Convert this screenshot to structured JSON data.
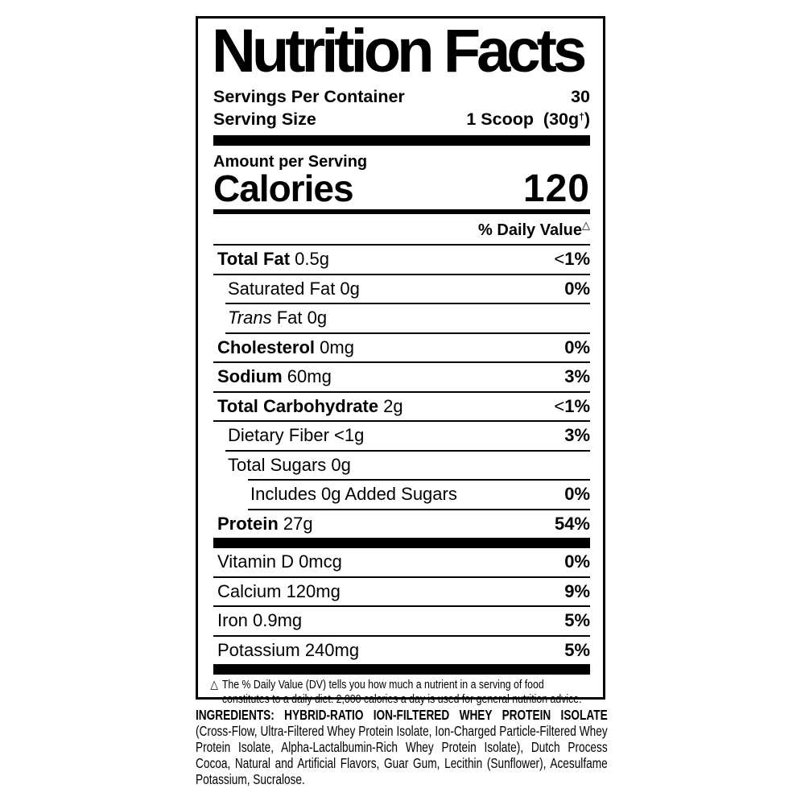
{
  "panel": {
    "title": "Nutrition Facts",
    "servings_per_container": {
      "label": "Servings Per Container",
      "value": "30"
    },
    "serving_size": {
      "label": "Serving Size",
      "value_main": "1 Scoop  (30g",
      "dagger": "†",
      "value_close": ")"
    },
    "amount_per_serving": "Amount per Serving",
    "calories": {
      "label": "Calories",
      "value": "120"
    },
    "daily_value_header": "% Daily Value",
    "daily_value_symbol": "△"
  },
  "rows": [
    {
      "type": "row",
      "id": "total-fat",
      "sep_indent": 0,
      "text_indent": 0,
      "label_parts": [
        {
          "t": "Total Fat",
          "b": true
        },
        {
          "t": " 0.5g"
        }
      ],
      "value_parts": [
        {
          "t": "<"
        },
        {
          "t": "1%",
          "b": true
        }
      ]
    },
    {
      "type": "row",
      "id": "saturated-fat",
      "sep_indent": 0,
      "text_indent": 1,
      "label_parts": [
        {
          "t": "Saturated Fat 0g"
        }
      ],
      "value_parts": [
        {
          "t": "0%",
          "b": true
        }
      ]
    },
    {
      "type": "row",
      "id": "trans-fat",
      "sep_indent": 1,
      "text_indent": 1,
      "label_parts": [
        {
          "t": "Trans",
          "i": true
        },
        {
          "t": " Fat 0g"
        }
      ],
      "value_parts": []
    },
    {
      "type": "row",
      "id": "cholesterol",
      "sep_indent": 1,
      "text_indent": 0,
      "label_parts": [
        {
          "t": "Cholesterol",
          "b": true
        },
        {
          "t": " 0mg"
        }
      ],
      "value_parts": [
        {
          "t": "0%",
          "b": true
        }
      ]
    },
    {
      "type": "row",
      "id": "sodium",
      "sep_indent": 0,
      "text_indent": 0,
      "label_parts": [
        {
          "t": "Sodium",
          "b": true
        },
        {
          "t": " 60mg"
        }
      ],
      "value_parts": [
        {
          "t": "3%",
          "b": true
        }
      ]
    },
    {
      "type": "row",
      "id": "total-carbohydrate",
      "sep_indent": 0,
      "text_indent": 0,
      "label_parts": [
        {
          "t": "Total Carbohydrate",
          "b": true
        },
        {
          "t": " 2g"
        }
      ],
      "value_parts": [
        {
          "t": "<"
        },
        {
          "t": "1%",
          "b": true
        }
      ]
    },
    {
      "type": "row",
      "id": "dietary-fiber",
      "sep_indent": 0,
      "text_indent": 1,
      "label_parts": [
        {
          "t": "Dietary Fiber <1g"
        }
      ],
      "value_parts": [
        {
          "t": "3%",
          "b": true
        }
      ]
    },
    {
      "type": "row",
      "id": "total-sugars",
      "sep_indent": 1,
      "text_indent": 1,
      "label_parts": [
        {
          "t": "Total Sugars 0g"
        }
      ],
      "value_parts": []
    },
    {
      "type": "row",
      "id": "added-sugars",
      "sep_indent": 2,
      "text_indent": 2,
      "label_parts": [
        {
          "t": "Includes 0g Added Sugars"
        }
      ],
      "value_parts": [
        {
          "t": "0%",
          "b": true
        }
      ]
    },
    {
      "type": "row",
      "id": "protein",
      "sep_indent": 2,
      "text_indent": 0,
      "label_parts": [
        {
          "t": "Protein",
          "b": true
        },
        {
          "t": " 27g"
        }
      ],
      "value_parts": [
        {
          "t": "54%",
          "b": true
        }
      ]
    },
    {
      "type": "bar"
    },
    {
      "type": "row",
      "id": "vitamin-d",
      "sep_indent": -1,
      "text_indent": 0,
      "label_parts": [
        {
          "t": "Vitamin D 0mcg"
        }
      ],
      "value_parts": [
        {
          "t": "0%",
          "b": true
        }
      ]
    },
    {
      "type": "row",
      "id": "calcium",
      "sep_indent": 0,
      "text_indent": 0,
      "label_parts": [
        {
          "t": "Calcium 120mg"
        }
      ],
      "value_parts": [
        {
          "t": "9%",
          "b": true
        }
      ]
    },
    {
      "type": "row",
      "id": "iron",
      "sep_indent": 0,
      "text_indent": 0,
      "label_parts": [
        {
          "t": "Iron 0.9mg"
        }
      ],
      "value_parts": [
        {
          "t": "5%",
          "b": true
        }
      ]
    },
    {
      "type": "row",
      "id": "potassium",
      "sep_indent": 0,
      "text_indent": 0,
      "label_parts": [
        {
          "t": "Potassium 240mg"
        }
      ],
      "value_parts": [
        {
          "t": "5%",
          "b": true
        }
      ]
    },
    {
      "type": "bar"
    }
  ],
  "footnote": {
    "symbol": "△",
    "text": "The % Daily Value (DV) tells you how much a nutrient in a serving of food constitutes to a daily diet. 2,000 calories a day is used for general nutrition advice."
  },
  "ingredients": {
    "heading": "INGREDIENTS: HYBRID-RATIO ION-FILTERED WHEY PROTEIN ISOLATE",
    "body": "(Cross-Flow, Ultra-Filtered Whey Protein Isolate, Ion-Charged Particle-Filtered Whey Protein Isolate, Alpha-Lactalbumin-Rich Whey Protein Isolate), Dutch Process Cocoa, Natural and Artificial Flavors, Guar Gum, Lecithin (Sunflower), Acesulfame Potassium, Sucralose."
  },
  "colors": {
    "ink": "#000000",
    "paper": "#ffffff"
  }
}
